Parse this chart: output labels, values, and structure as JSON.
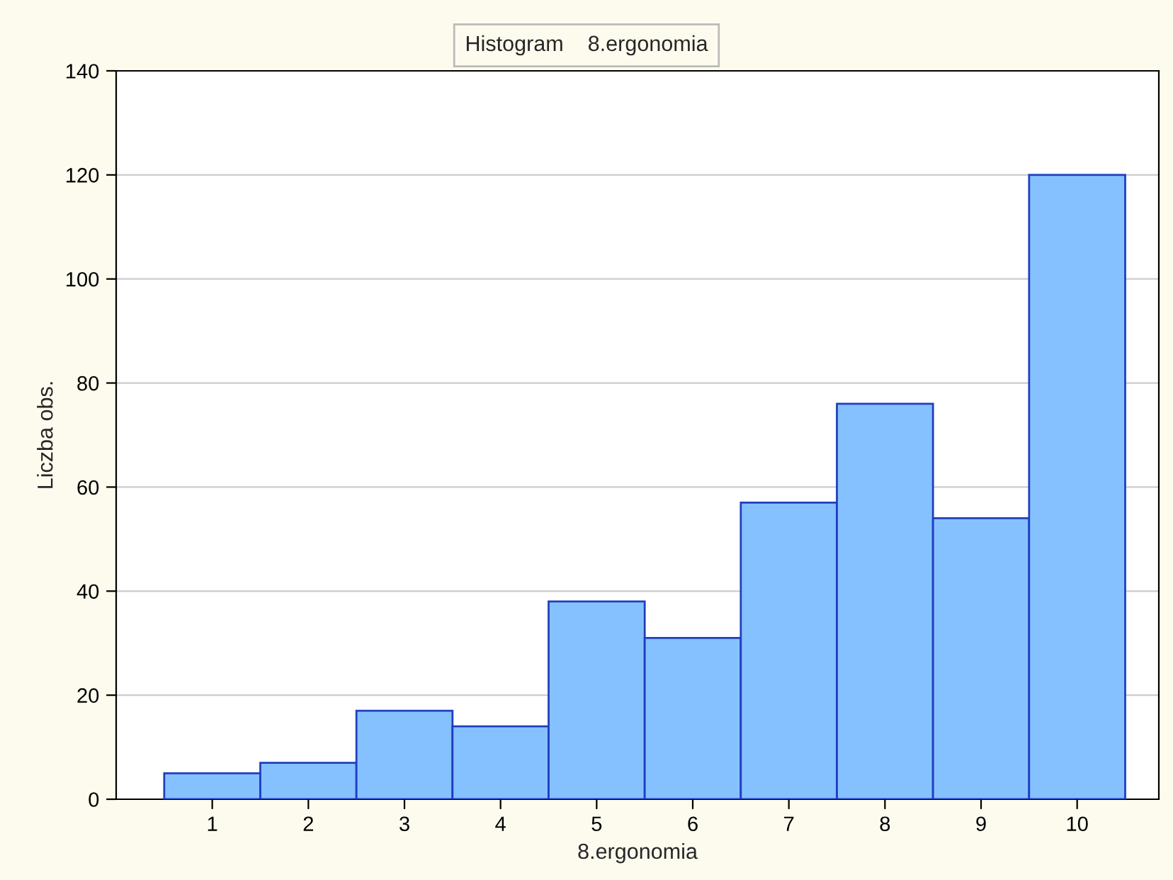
{
  "chart_data": {
    "type": "histogram",
    "title": "Histogram    8.ergonomia",
    "xlabel": "8.ergonomia",
    "ylabel": "Liczba obs.",
    "bins": [
      0.5,
      1.5,
      2.5,
      3.5,
      4.5,
      5.5,
      6.5,
      7.5,
      8.5,
      9.5,
      10.5
    ],
    "values": [
      5,
      7,
      17,
      14,
      38,
      31,
      57,
      76,
      54,
      120
    ],
    "color": "#86c1ff",
    "xlim": [
      0,
      10.85
    ],
    "xticks": [
      1,
      2,
      3,
      4,
      5,
      6,
      7,
      8,
      9,
      10
    ],
    "ylim": [
      0,
      140
    ],
    "yticks": [
      0,
      20,
      40,
      60,
      80,
      100,
      120,
      140
    ],
    "grid": "y"
  }
}
